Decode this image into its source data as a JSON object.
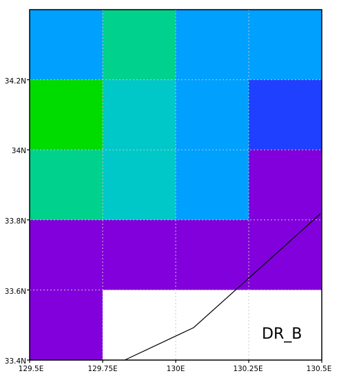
{
  "map": {
    "region_label": "DR_B",
    "x_ticks": [
      "129.5E",
      "129.75E",
      "130E",
      "130.25E",
      "130.5E"
    ],
    "y_ticks": [
      "34.2N",
      "34N",
      "33.8N",
      "33.6N",
      "33.4N"
    ],
    "lon_range": [
      129.5,
      130.5
    ],
    "lat_range": [
      33.4,
      34.4
    ],
    "grid_cells": [
      [
        "#00a0ff",
        "#00d18c",
        "#00a0ff",
        "#00a0ff"
      ],
      [
        "#00dc00",
        "#00c8c8",
        "#00a0ff",
        "#2040ff"
      ],
      [
        "#00d18c",
        "#00c8c8",
        "#00a0ff",
        "#8200dc"
      ],
      [
        "#8200dc",
        "#8200dc",
        "#8200dc",
        "#8200dc"
      ],
      [
        "#8200dc",
        "#ffffff",
        "#ffffff",
        "#ffffff"
      ]
    ],
    "gridline_color": "#c8c8c8",
    "coastline_color": "#000000"
  }
}
